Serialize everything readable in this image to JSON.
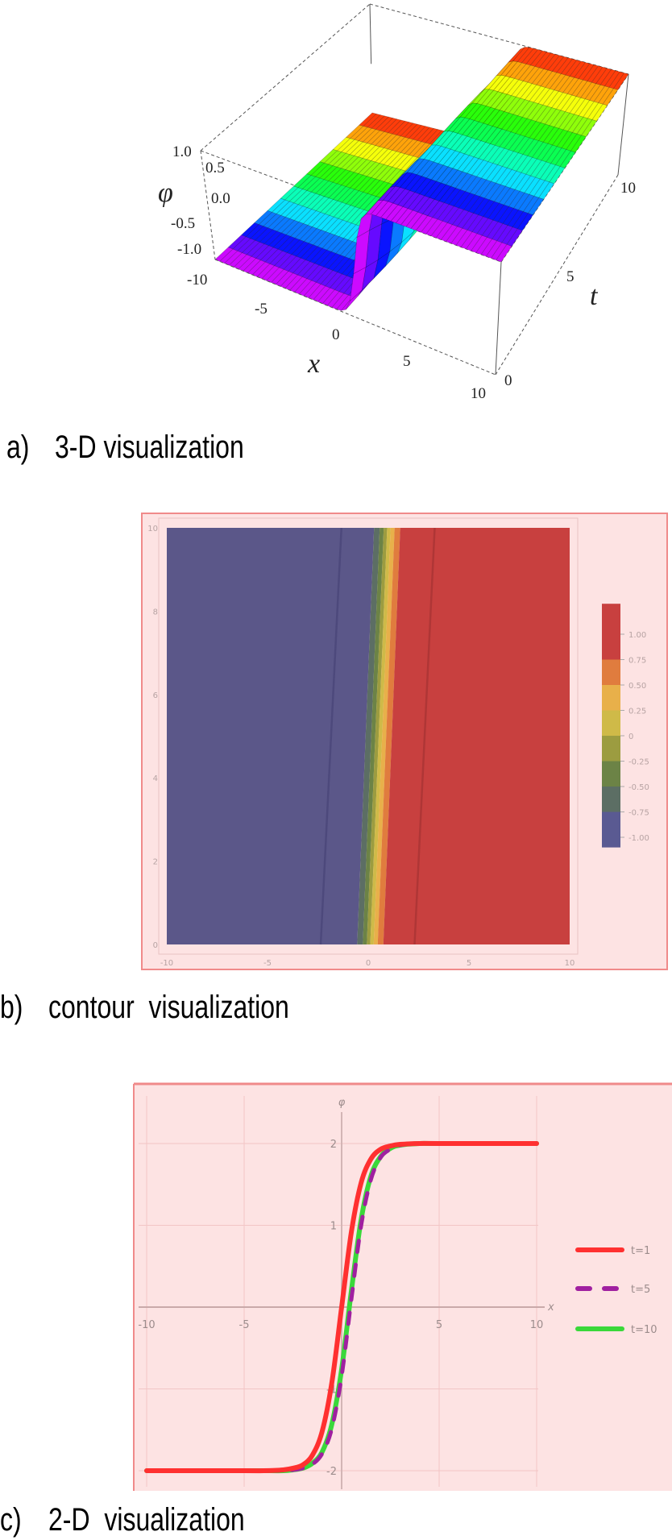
{
  "chart_data": [
    {
      "panel": "a",
      "type": "surface3d",
      "caption_label": "a)",
      "caption_text": "3-D visualization",
      "xlabel": "x",
      "ylabel": "t",
      "zlabel": "φ",
      "xlim": [
        -10,
        10
      ],
      "ylim": [
        0,
        10
      ],
      "zlim": [
        -1,
        1
      ],
      "xticks": [
        "-10",
        "-5",
        "0",
        "5",
        "10"
      ],
      "yticks": [
        "0",
        "5",
        "10"
      ],
      "zticks": [
        "1.0",
        "0.5",
        "0.0",
        "-0.5",
        "-1.0"
      ],
      "surface": {
        "low_value": -1,
        "high_value": 1,
        "kink_x_at_t0": 0.1,
        "kink_x_at_t10": 0.94
      },
      "color_by": "t",
      "colormap": [
        "#ff00ff",
        "#0000ff",
        "#00ffff",
        "#00ff00",
        "#ffff00",
        "#ff0000"
      ]
    },
    {
      "panel": "b",
      "type": "contour",
      "caption_label": "b)",
      "caption_text": "contour  visualization",
      "xlim": [
        -10,
        10
      ],
      "ylim": [
        0,
        10
      ],
      "xticks": [
        "-10",
        "-5",
        "0",
        "5",
        "10"
      ],
      "yticks": [
        "0",
        "2",
        "4",
        "6",
        "8",
        "10"
      ],
      "levels": [
        -0.75,
        -0.5,
        -0.25,
        0,
        0.25,
        0.5,
        0.75
      ],
      "level_x_at_t0": [
        -0.55,
        -0.27,
        -0.07,
        0.1,
        0.27,
        0.47,
        0.75
      ],
      "level_x_at_t10": [
        0.29,
        0.57,
        0.77,
        0.94,
        1.11,
        1.31,
        1.59
      ],
      "outer_contours": [
        {
          "level": -1.0,
          "x_at_t0": -2.36,
          "x_at_t10": -1.33
        },
        {
          "level": 1.0,
          "x_at_t0": 2.3,
          "x_at_t10": 3.3
        }
      ],
      "colorbar": {
        "tick_values": [
          1.0,
          0.75,
          0.5,
          0.25,
          0,
          -0.25,
          -0.5,
          -0.75,
          -1.0
        ],
        "tick_labels": [
          "1.00",
          "0.75",
          "0.50",
          "0.25",
          "0",
          "-0.25",
          "-0.50",
          "-0.75",
          "-1.00"
        ],
        "band_colors_top_to_bottom": [
          "#c8403f",
          "#e07c3e",
          "#e8b04a",
          "#cfba48",
          "#9c9c40",
          "#6c8346",
          "#5c6e64",
          "#5a5a92"
        ]
      },
      "colors": {
        "low": "#5b5789",
        "high": "#c8403f",
        "background": "#fde3e3",
        "frame": "#f08a8a"
      }
    },
    {
      "panel": "c",
      "type": "line",
      "caption_label": "c)",
      "caption_text": "2-D  visualization",
      "xlabel": "x",
      "ylabel": "φ",
      "xlim": [
        -10,
        10
      ],
      "ylim": [
        -2,
        2
      ],
      "xticks": [
        "-10",
        "-5",
        "5",
        "10"
      ],
      "yticks": [
        "2",
        "1",
        "-1",
        "-2"
      ],
      "grid": true,
      "legend_position": "right",
      "x": [
        -10,
        -5,
        -4,
        -3,
        -2.5,
        -2,
        -1.5,
        -1,
        -0.5,
        0,
        0.5,
        1,
        1.5,
        2,
        2.5,
        3,
        4,
        5,
        10
      ],
      "series": [
        {
          "name": "t=1",
          "color": "#ff3030",
          "style": "solid",
          "values": [
            -2,
            -2,
            -2,
            -1.99,
            -1.97,
            -1.93,
            -1.81,
            -1.52,
            -0.92,
            0,
            0.92,
            1.52,
            1.81,
            1.93,
            1.97,
            1.99,
            2,
            2,
            2
          ]
        },
        {
          "name": "t=5",
          "color": "#a020a0",
          "style": "dashed",
          "values": [
            -2,
            -2,
            -2,
            -2,
            -1.99,
            -1.97,
            -1.92,
            -1.79,
            -1.48,
            -0.84,
            0.1,
            1.0,
            1.56,
            1.83,
            1.93,
            1.98,
            2,
            2,
            2
          ]
        },
        {
          "name": "t=10",
          "color": "#3ad83a",
          "style": "solid",
          "values": [
            -2,
            -2,
            -2,
            -2,
            -1.99,
            -1.97,
            -1.91,
            -1.77,
            -1.43,
            -0.76,
            0.2,
            1.07,
            1.6,
            1.84,
            1.94,
            1.98,
            2,
            2,
            2
          ]
        }
      ],
      "colors": {
        "background": "#fde3e3",
        "frame": "#f08a8a",
        "grid": "#f2c6c6"
      }
    }
  ]
}
